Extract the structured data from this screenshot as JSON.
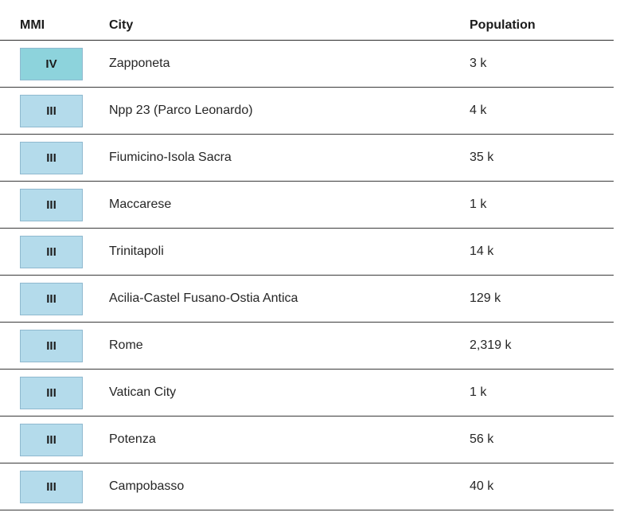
{
  "table": {
    "headers": {
      "mmi": "MMI",
      "city": "City",
      "population": "Population"
    },
    "rows": [
      {
        "mmi": "IV",
        "city": "Zapponeta",
        "population": "3 k",
        "badge_color": "#8dd3dc"
      },
      {
        "mmi": "III",
        "city": "Npp 23 (Parco Leonardo)",
        "population": "4 k",
        "badge_color": "#b4dbeb"
      },
      {
        "mmi": "III",
        "city": "Fiumicino-Isola Sacra",
        "population": "35 k",
        "badge_color": "#b4dbeb"
      },
      {
        "mmi": "III",
        "city": "Maccarese",
        "population": "1 k",
        "badge_color": "#b4dbeb"
      },
      {
        "mmi": "III",
        "city": "Trinitapoli",
        "population": "14 k",
        "badge_color": "#b4dbeb"
      },
      {
        "mmi": "III",
        "city": "Acilia-Castel Fusano-Ostia Antica",
        "population": "129 k",
        "badge_color": "#b4dbeb"
      },
      {
        "mmi": "III",
        "city": "Rome",
        "population": "2,319 k",
        "badge_color": "#b4dbeb"
      },
      {
        "mmi": "III",
        "city": "Vatican City",
        "population": "1 k",
        "badge_color": "#b4dbeb"
      },
      {
        "mmi": "III",
        "city": "Potenza",
        "population": "56 k",
        "badge_color": "#b4dbeb"
      },
      {
        "mmi": "III",
        "city": "Campobasso",
        "population": "40 k",
        "badge_color": "#b4dbeb"
      }
    ]
  }
}
